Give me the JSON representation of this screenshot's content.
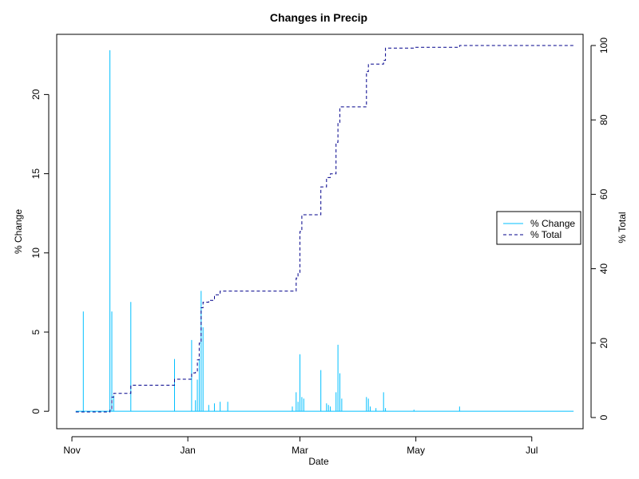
{
  "chart_data": {
    "type": "line",
    "title": "Changes in Precip",
    "xlabel": "Date",
    "ylabel_left": "% Change",
    "ylabel_right": "% Total",
    "x_ticks": [
      "Nov",
      "Jan",
      "Mar",
      "May",
      "Jul"
    ],
    "x_tick_dates": [
      "2014-11-01",
      "2015-01-01",
      "2015-03-01",
      "2015-05-01",
      "2015-07-01"
    ],
    "xlim": [
      "2014-10-24",
      "2015-07-28"
    ],
    "ylim_left": [
      -1.1,
      23.8
    ],
    "ylim_right": [
      -3,
      103
    ],
    "yticks_left": [
      0,
      5,
      10,
      15,
      20
    ],
    "yticks_right": [
      0,
      20,
      40,
      60,
      80,
      100
    ],
    "grid": false,
    "legend": {
      "position": "right",
      "entries": [
        {
          "label": "% Change",
          "color": "#00BFFF",
          "style": "solid"
        },
        {
          "label": "% Total",
          "color": "#00008B",
          "style": "dashed"
        }
      ]
    },
    "series": [
      {
        "name": "% Change",
        "axis": "left",
        "kind": "spikes",
        "color": "#00BFFF",
        "x": [
          "2014-11-07",
          "2014-11-21",
          "2014-11-22",
          "2014-11-23",
          "2014-12-02",
          "2014-12-25",
          "2015-01-03",
          "2015-01-05",
          "2015-01-06",
          "2015-01-07",
          "2015-01-08",
          "2015-01-09",
          "2015-01-12",
          "2015-01-15",
          "2015-01-18",
          "2015-01-22",
          "2015-02-25",
          "2015-02-27",
          "2015-02-28",
          "2015-03-01",
          "2015-03-02",
          "2015-03-03",
          "2015-03-12",
          "2015-03-15",
          "2015-03-16",
          "2015-03-17",
          "2015-03-20",
          "2015-03-21",
          "2015-03-22",
          "2015-03-23",
          "2015-04-05",
          "2015-04-06",
          "2015-04-07",
          "2015-04-10",
          "2015-04-14",
          "2015-04-15",
          "2015-04-30",
          "2015-05-24"
        ],
        "values": [
          6.3,
          22.8,
          6.3,
          1.0,
          6.9,
          3.3,
          4.5,
          0.7,
          2.0,
          3.3,
          7.6,
          5.3,
          0.4,
          0.5,
          0.6,
          0.6,
          0.3,
          1.2,
          0.6,
          3.6,
          0.9,
          0.8,
          2.6,
          0.5,
          0.4,
          0.3,
          1.2,
          4.2,
          2.4,
          0.8,
          0.9,
          0.8,
          0.3,
          0.2,
          1.2,
          0.2,
          0.1,
          0.3
        ]
      },
      {
        "name": "% Total",
        "axis": "right",
        "kind": "step",
        "color": "#00008B",
        "x": [
          "2014-11-03",
          "2014-11-21",
          "2014-11-22",
          "2014-11-23",
          "2014-12-02",
          "2014-12-25",
          "2015-01-03",
          "2015-01-05",
          "2015-01-06",
          "2015-01-07",
          "2015-01-08",
          "2015-01-09",
          "2015-01-12",
          "2015-01-15",
          "2015-01-18",
          "2015-02-27",
          "2015-02-28",
          "2015-03-01",
          "2015-03-02",
          "2015-03-12",
          "2015-03-15",
          "2015-03-17",
          "2015-03-20",
          "2015-03-21",
          "2015-03-22",
          "2015-04-05",
          "2015-04-06",
          "2015-04-14",
          "2015-04-15",
          "2015-04-30",
          "2015-05-24",
          "2015-07-23"
        ],
        "values": [
          1.5,
          2,
          5.5,
          6.5,
          8.7,
          10.3,
          12,
          12.5,
          15.5,
          20,
          29.5,
          31,
          31.5,
          33,
          34,
          37.5,
          39,
          50,
          54.5,
          62,
          64.5,
          65.5,
          74,
          79,
          83.5,
          93,
          95,
          96,
          99.3,
          99.5,
          100,
          100
        ]
      }
    ]
  }
}
